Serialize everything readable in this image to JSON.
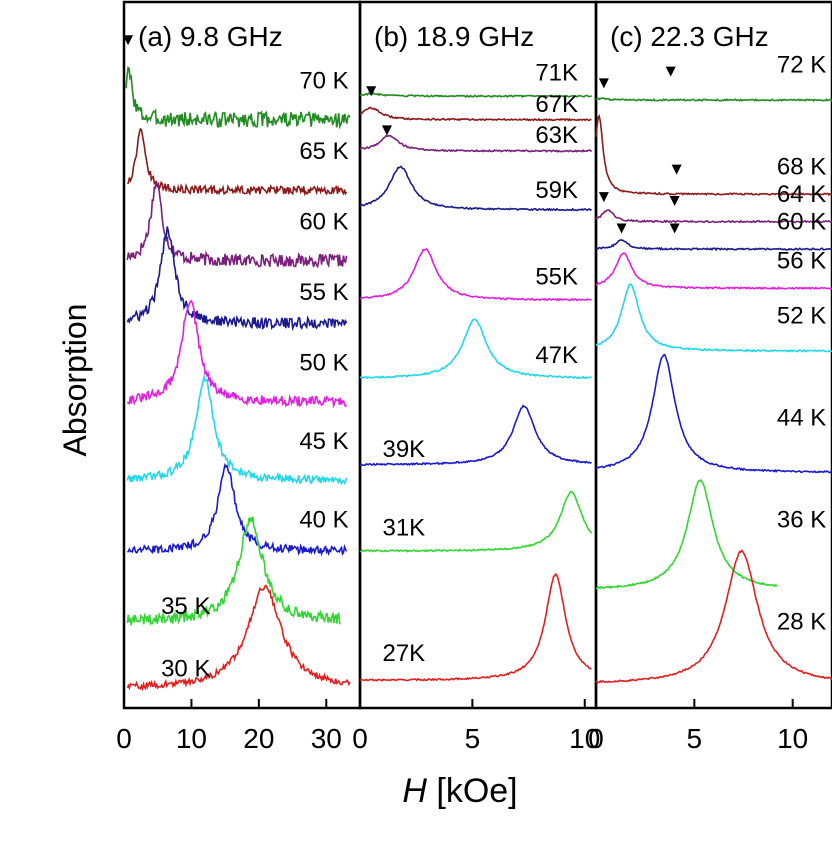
{
  "figure": {
    "ylabel": "Absorption",
    "xlabel_symbol": "H",
    "xlabel_unit": " [kOe]"
  },
  "chart_data": [
    {
      "type": "line",
      "title": "(a) 9.8 GHz",
      "xlim": [
        0,
        35
      ],
      "xticks": [
        0,
        10,
        20,
        30
      ],
      "tick_labels": [
        "0",
        "10",
        "20",
        "30"
      ],
      "legend": "none",
      "grid": false,
      "series": [
        {
          "name": "70 K",
          "color": "#228B22",
          "base": 7.5,
          "x0": 0.3,
          "x1": 33.5,
          "peak": 0.7,
          "width": 0.7,
          "amp": 0.6,
          "noise": 0.1
        },
        {
          "name": "65 K",
          "color": "#8B1A1A",
          "base": 6.6,
          "x0": 0.5,
          "x1": 33,
          "peak": 2.5,
          "width": 0.8,
          "amp": 0.8,
          "noise": 0.05
        },
        {
          "name": "60 K",
          "color": "#7B1F7B",
          "base": 5.7,
          "x0": 0.5,
          "x1": 33,
          "peak": 4.8,
          "width": 1.0,
          "amp": 1.0,
          "noise": 0.08
        },
        {
          "name": "55 K",
          "color": "#1A1A8C",
          "base": 4.9,
          "x0": 0.5,
          "x1": 33,
          "peak": 6.5,
          "width": 1.3,
          "amp": 1.2,
          "noise": 0.07
        },
        {
          "name": "50 K",
          "color": "#E020E0",
          "base": 3.9,
          "x0": 0.5,
          "x1": 33,
          "peak": 9.8,
          "width": 1.5,
          "amp": 1.3,
          "noise": 0.06
        },
        {
          "name": "45 K",
          "color": "#22D8E8",
          "base": 2.9,
          "x0": 0.5,
          "x1": 33,
          "peak": 12.0,
          "width": 1.6,
          "amp": 1.3,
          "noise": 0.05
        },
        {
          "name": "40 K",
          "color": "#1A1ACC",
          "base": 2.0,
          "x0": 0.5,
          "x1": 33,
          "peak": 15.2,
          "width": 1.5,
          "amp": 1.1,
          "noise": 0.05
        },
        {
          "name": "35 K",
          "color": "#33D633",
          "base": 1.1,
          "x0": 0.5,
          "x1": 32,
          "peak": 18.8,
          "width": 2.2,
          "amp": 1.3,
          "noise": 0.07
        },
        {
          "name": "30 K",
          "color": "#E02020",
          "base": 0.25,
          "x0": 0.5,
          "x1": 33.5,
          "peak": 20.8,
          "width": 3.0,
          "amp": 1.3,
          "noise": 0.04
        }
      ],
      "markers": [
        {
          "x": 0.6,
          "y": 8.5
        }
      ],
      "labels": [
        {
          "text": "70 K",
          "x": 26,
          "y": 7.9
        },
        {
          "text": "65 K",
          "x": 26,
          "y": 7.0
        },
        {
          "text": "60 K",
          "x": 26,
          "y": 6.1
        },
        {
          "text": "55 K",
          "x": 26,
          "y": 5.2
        },
        {
          "text": "50 K",
          "x": 26,
          "y": 4.3
        },
        {
          "text": "45 K",
          "x": 26,
          "y": 3.3
        },
        {
          "text": "40 K",
          "x": 26,
          "y": 2.3
        },
        {
          "text": "35 K",
          "x": 5.5,
          "y": 1.2
        },
        {
          "text": "30 K",
          "x": 5.5,
          "y": 0.4
        }
      ]
    },
    {
      "type": "line",
      "title": "(b) 18.9 GHz",
      "xlim": [
        0,
        10.5
      ],
      "xticks": [
        0,
        5,
        10
      ],
      "tick_labels": [
        "0",
        "5",
        "10"
      ],
      "legend": "none",
      "grid": false,
      "series": [
        {
          "name": "71K",
          "color": "#228B22",
          "base": 7.8,
          "x0": 0,
          "x1": 10.3,
          "peak": 0.5,
          "width": 0.5,
          "amp": 0.03,
          "noise": 0.01
        },
        {
          "name": "67K",
          "color": "#8B1A1A",
          "base": 7.5,
          "x0": 0,
          "x1": 10.3,
          "peak": 0.5,
          "width": 0.5,
          "amp": 0.15,
          "noise": 0.01
        },
        {
          "name": "63K",
          "color": "#7B1F7B",
          "base": 7.1,
          "x0": 0,
          "x1": 10.3,
          "peak": 1.3,
          "width": 0.5,
          "amp": 0.2,
          "noise": 0.01
        },
        {
          "name": "59K",
          "color": "#1A1A8C",
          "base": 6.35,
          "x0": 0,
          "x1": 10.3,
          "peak": 1.8,
          "width": 0.6,
          "amp": 0.55,
          "noise": 0.01
        },
        {
          "name": "55K",
          "color": "#E020E0",
          "base": 5.2,
          "x0": 0,
          "x1": 10.3,
          "peak": 2.9,
          "width": 0.6,
          "amp": 0.65,
          "noise": 0.01
        },
        {
          "name": "47K",
          "color": "#22D8E8",
          "base": 4.2,
          "x0": 0,
          "x1": 10.3,
          "peak": 5.1,
          "width": 0.65,
          "amp": 0.75,
          "noise": 0.01
        },
        {
          "name": "39K",
          "color": "#1A1ACC",
          "base": 3.1,
          "x0": 0,
          "x1": 10.3,
          "peak": 7.3,
          "width": 0.6,
          "amp": 0.75,
          "noise": 0.01
        },
        {
          "name": "31K",
          "color": "#33D633",
          "base": 2.0,
          "x0": 0,
          "x1": 10.3,
          "peak": 9.4,
          "width": 0.6,
          "amp": 0.75,
          "noise": 0.01
        },
        {
          "name": "27K",
          "color": "#E02020",
          "base": 0.35,
          "x0": 0,
          "x1": 10.3,
          "peak": 8.7,
          "width": 0.55,
          "amp": 1.35,
          "noise": 0.01
        }
      ],
      "markers": [
        {
          "x": 0.5,
          "y": 7.85
        },
        {
          "x": 1.2,
          "y": 7.35
        }
      ],
      "labels": [
        {
          "text": "71K",
          "x": 7.8,
          "y": 8.0
        },
        {
          "text": "67K",
          "x": 7.8,
          "y": 7.6
        },
        {
          "text": "63K",
          "x": 7.8,
          "y": 7.2
        },
        {
          "text": "59K",
          "x": 7.8,
          "y": 6.5
        },
        {
          "text": "55K",
          "x": 7.8,
          "y": 5.4
        },
        {
          "text": "47K",
          "x": 7.8,
          "y": 4.4
        },
        {
          "text": "39K",
          "x": 1.0,
          "y": 3.2
        },
        {
          "text": "31K",
          "x": 1.0,
          "y": 2.2
        },
        {
          "text": "27K",
          "x": 1.0,
          "y": 0.6
        }
      ]
    },
    {
      "type": "line",
      "title": "(c) 22.3 GHz",
      "xlim": [
        0,
        12
      ],
      "xticks": [
        0,
        5,
        10
      ],
      "tick_labels": [
        "0",
        "5",
        "10"
      ],
      "legend": "none",
      "grid": false,
      "series": [
        {
          "name": "72 K",
          "color": "#228B22",
          "base": 7.75,
          "x0": 0,
          "x1": 12,
          "peak": 0.3,
          "width": 0.3,
          "amp": 0.02,
          "noise": 0.01
        },
        {
          "name": "68 K",
          "color": "#8B1A1A",
          "base": 6.55,
          "x0": 0,
          "x1": 12,
          "peak": 0.15,
          "width": 0.25,
          "amp": 1.0,
          "noise": 0.01
        },
        {
          "name": "64 K",
          "color": "#7B1F7B",
          "base": 6.2,
          "x0": 0,
          "x1": 12,
          "peak": 0.6,
          "width": 0.35,
          "amp": 0.15,
          "noise": 0.01
        },
        {
          "name": "60 K",
          "color": "#1A1A8C",
          "base": 5.85,
          "x0": 0,
          "x1": 12,
          "peak": 1.3,
          "width": 0.35,
          "amp": 0.12,
          "noise": 0.01
        },
        {
          "name": "56 K",
          "color": "#E020E0",
          "base": 5.35,
          "x0": 0,
          "x1": 12,
          "peak": 1.4,
          "width": 0.5,
          "amp": 0.45,
          "noise": 0.01
        },
        {
          "name": "52 K",
          "color": "#22D8E8",
          "base": 4.55,
          "x0": 0,
          "x1": 12,
          "peak": 1.75,
          "width": 0.55,
          "amp": 0.85,
          "noise": 0.01
        },
        {
          "name": "44 K",
          "color": "#1A1ACC",
          "base": 3.0,
          "x0": 0,
          "x1": 12,
          "peak": 3.45,
          "width": 0.7,
          "amp": 1.5,
          "noise": 0.01
        },
        {
          "name": "36 K",
          "color": "#33D633",
          "base": 1.5,
          "x0": 0,
          "x1": 9.2,
          "peak": 5.3,
          "width": 0.8,
          "amp": 1.4,
          "noise": 0.01
        },
        {
          "name": "28 K",
          "color": "#E02020",
          "base": 0.3,
          "x0": 0,
          "x1": 12,
          "peak": 7.4,
          "width": 1.0,
          "amp": 1.7,
          "noise": 0.01
        }
      ],
      "markers": [
        {
          "x": 0.4,
          "y": 7.95
        },
        {
          "x": 3.8,
          "y": 8.1
        },
        {
          "x": 4.1,
          "y": 6.85
        },
        {
          "x": 0.4,
          "y": 6.5
        },
        {
          "x": 4.0,
          "y": 6.45
        },
        {
          "x": 1.3,
          "y": 6.1
        },
        {
          "x": 4.0,
          "y": 6.1
        }
      ],
      "labels": [
        {
          "text": "72 K",
          "x": 9.2,
          "y": 8.1
        },
        {
          "text": "68 K",
          "x": 9.2,
          "y": 6.8
        },
        {
          "text": "64 K",
          "x": 9.2,
          "y": 6.45
        },
        {
          "text": "60 K",
          "x": 9.2,
          "y": 6.1
        },
        {
          "text": "56 K",
          "x": 9.2,
          "y": 5.6
        },
        {
          "text": "52 K",
          "x": 9.2,
          "y": 4.9
        },
        {
          "text": "44 K",
          "x": 9.2,
          "y": 3.6
        },
        {
          "text": "36 K",
          "x": 9.2,
          "y": 2.3
        },
        {
          "text": "28 K",
          "x": 9.2,
          "y": 1.0
        }
      ]
    }
  ]
}
